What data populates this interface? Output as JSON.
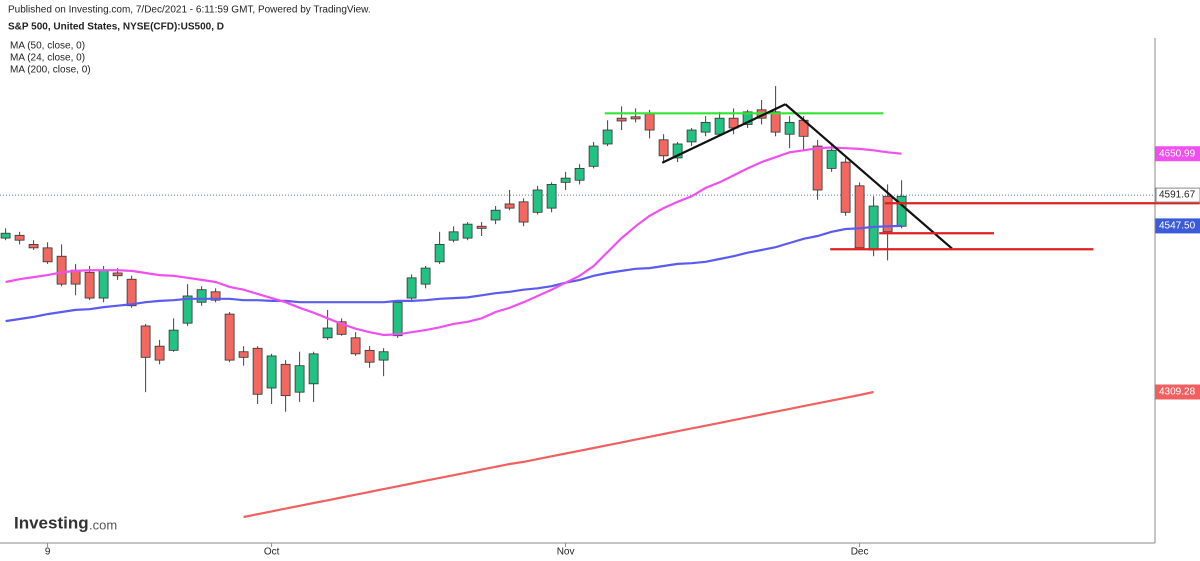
{
  "chart_data": {
    "type": "candlestick",
    "header": "Published on Investing.com, 7/Dec/2021 - 6:11:59 GMT, Powered by TradingView.",
    "title": "S&P 500, United States, NYSE(CFD):US500, D",
    "logo": [
      "Investing",
      ".com"
    ],
    "categories": [
      null,
      null,
      null,
      "9",
      null,
      null,
      null,
      null,
      null,
      null,
      null,
      null,
      null,
      null,
      null,
      null,
      null,
      null,
      null,
      "Oct",
      null,
      null,
      null,
      null,
      null,
      null,
      null,
      null,
      null,
      null,
      null,
      null,
      null,
      null,
      null,
      null,
      null,
      null,
      null,
      null,
      "Nov",
      null,
      null,
      null,
      null,
      null,
      null,
      null,
      null,
      null,
      null,
      null,
      null,
      null,
      null,
      null,
      null,
      null,
      null,
      null,
      null,
      "Dec",
      null,
      null,
      null
    ],
    "xlim": [
      -0.4,
      82.1
    ],
    "ylim": [
      4097,
      4817
    ],
    "up_color": "#22c382",
    "down_color": "#f2675f",
    "candles": {
      "open": [
        4530,
        4534,
        4521,
        4516,
        4504,
        4484,
        4481,
        4444,
        4480,
        4471,
        4404,
        4375,
        4369,
        4408,
        4438,
        4453,
        4421,
        4367,
        4372,
        4315,
        4349,
        4309,
        4321,
        4387,
        4410,
        4387,
        4369,
        4355,
        4390,
        4444,
        4464,
        4496,
        4527,
        4530,
        4547,
        4556,
        4579,
        4582,
        4567,
        4573,
        4610,
        4613,
        4633,
        4665,
        4702,
        4704,
        4708,
        4671,
        4645,
        4668,
        4682,
        4679,
        4702,
        4693,
        4714,
        4711,
        4679,
        4699,
        4662,
        4630,
        4639,
        4605,
        4513,
        4590,
        4547
      ],
      "high": [
        4544,
        4539,
        4527,
        4524,
        4521,
        4493,
        4490,
        4490,
        4487,
        4476,
        4407,
        4384,
        4415,
        4464,
        4461,
        4458,
        4424,
        4375,
        4375,
        4364,
        4355,
        4367,
        4367,
        4427,
        4415,
        4395,
        4375,
        4372,
        4441,
        4478,
        4490,
        4539,
        4547,
        4553,
        4553,
        4576,
        4599,
        4587,
        4605,
        4610,
        4625,
        4636,
        4668,
        4699,
        4719,
        4716,
        4714,
        4679,
        4668,
        4688,
        4705,
        4711,
        4716,
        4714,
        4728,
        4748,
        4705,
        4705,
        4671,
        4665,
        4645,
        4610,
        4590,
        4607,
        4613
      ],
      "low": [
        4527,
        4521,
        4513,
        4493,
        4461,
        4448,
        4441,
        4438,
        4470,
        4430,
        4309,
        4349,
        4367,
        4404,
        4433,
        4438,
        4352,
        4347,
        4292,
        4292,
        4281,
        4295,
        4295,
        4384,
        4390,
        4361,
        4344,
        4332,
        4387,
        4441,
        4458,
        4493,
        4524,
        4527,
        4533,
        4550,
        4570,
        4547,
        4564,
        4567,
        4599,
        4607,
        4630,
        4662,
        4685,
        4696,
        4673,
        4639,
        4639,
        4662,
        4676,
        4676,
        4679,
        4688,
        4693,
        4676,
        4659,
        4656,
        4585,
        4625,
        4562,
        4513,
        4504,
        4498,
        4544
      ],
      "close": [
        4537,
        4527,
        4516,
        4496,
        4464,
        4464,
        4444,
        4484,
        4476,
        4433,
        4359,
        4355,
        4398,
        4447,
        4456,
        4441,
        4355,
        4359,
        4306,
        4361,
        4304,
        4347,
        4364,
        4401,
        4392,
        4364,
        4352,
        4367,
        4438,
        4473,
        4487,
        4521,
        4539,
        4550,
        4544,
        4570,
        4573,
        4553,
        4599,
        4607,
        4616,
        4630,
        4662,
        4685,
        4698,
        4701,
        4685,
        4648,
        4665,
        4685,
        4696,
        4702,
        4688,
        4711,
        4702,
        4682,
        4696,
        4676,
        4599,
        4656,
        4567,
        4516,
        4576,
        4539,
        4590
      ]
    },
    "series": [
      {
        "name": "MA (50, close, 0)",
        "color": "#5b5bf0",
        "values": [
          4411,
          4414,
          4417,
          4421,
          4424,
          4427,
          4428,
          4431,
          4433,
          4435,
          4438,
          4440,
          4441,
          4443,
          4443,
          4443,
          4443,
          4441,
          4441,
          4440,
          4440,
          4438,
          4438,
          4438,
          4438,
          4438,
          4438,
          4438,
          4440,
          4440,
          4441,
          4443,
          4444,
          4445,
          4448,
          4451,
          4453,
          4456,
          4458,
          4461,
          4466,
          4470,
          4476,
          4480,
          4483,
          4486,
          4487,
          4490,
          4493,
          4494,
          4496,
          4500,
          4504,
          4509,
          4513,
          4517,
          4523,
          4529,
          4533,
          4539,
          4543,
          4544,
          4546,
          4547,
          4547.5
        ]
      },
      {
        "name": "MA (24, close, 0)",
        "color": "#f050f0",
        "values": [
          4467,
          4471,
          4474,
          4477,
          4481,
          4483,
          4484,
          4484,
          4484,
          4483,
          4480,
          4477,
          4476,
          4473,
          4470,
          4467,
          4460,
          4456,
          4450,
          4444,
          4438,
          4430,
          4423,
          4415,
          4407,
          4400,
          4395,
          4391,
          4392,
          4395,
          4398,
          4402,
          4407,
          4410,
          4415,
          4424,
          4430,
          4438,
          4447,
          4456,
          4466,
          4476,
          4490,
          4510,
          4530,
          4547,
          4562,
          4573,
          4582,
          4590,
          4602,
          4610,
          4620,
          4630,
          4639,
          4646,
          4653,
          4656,
          4659,
          4660,
          4659,
          4658,
          4656,
          4653,
          4650.99
        ]
      },
      {
        "name": "MA (200, close, 0)",
        "color": "#f06060",
        "values": [
          null,
          null,
          null,
          null,
          null,
          null,
          null,
          null,
          null,
          null,
          null,
          null,
          null,
          null,
          null,
          null,
          null,
          4130,
          4134,
          4138,
          4142,
          4146,
          4150,
          4154,
          4158,
          4162,
          4166,
          4170,
          4174,
          4178,
          4182,
          4186,
          4190,
          4194,
          4198,
          4202,
          4206,
          4209,
          4213,
          4217,
          4221,
          4225,
          4229,
          4233,
          4237,
          4241,
          4245,
          4249,
          4253,
          4257,
          4261,
          4265,
          4269,
          4273,
          4277,
          4281,
          4285,
          4289,
          4293,
          4297,
          4301,
          4305,
          4309.28,
          null,
          null
        ]
      }
    ],
    "drawings": [
      {
        "color": "#33e533",
        "start": {
          "index": 42.8,
          "value": 4709
        },
        "end": {
          "index": 62.7,
          "value": 4709
        }
      },
      {
        "color": "#111111",
        "start": {
          "index": 46.9,
          "value": 4638
        },
        "end": {
          "index": 55.7,
          "value": 4722
        }
      },
      {
        "color": "#111111",
        "start": {
          "index": 55.7,
          "value": 4722
        },
        "end": {
          "index": 67.6,
          "value": 4515
        }
      },
      {
        "color": "#e02020",
        "start": {
          "index": 62.8,
          "value": 4580
        },
        "end": {
          "index": 85.3,
          "value": 4580
        }
      },
      {
        "color": "#e02020",
        "start": {
          "index": 62.4,
          "value": 4537
        },
        "end": {
          "index": 70.6,
          "value": 4537
        }
      },
      {
        "color": "#e02020",
        "start": {
          "index": 58.9,
          "value": 4514
        },
        "end": {
          "index": 77.7,
          "value": 4514
        }
      }
    ],
    "price_labels": [
      {
        "value": 4650.99,
        "color": "#f050f0"
      },
      {
        "value": 4591.67,
        "color": "#ffffff",
        "line": "dotted"
      },
      {
        "value": 4547.5,
        "label": "4547.50",
        "color": "#3b5bd8"
      },
      {
        "value": 4309.28,
        "color": "#f06060"
      }
    ]
  }
}
